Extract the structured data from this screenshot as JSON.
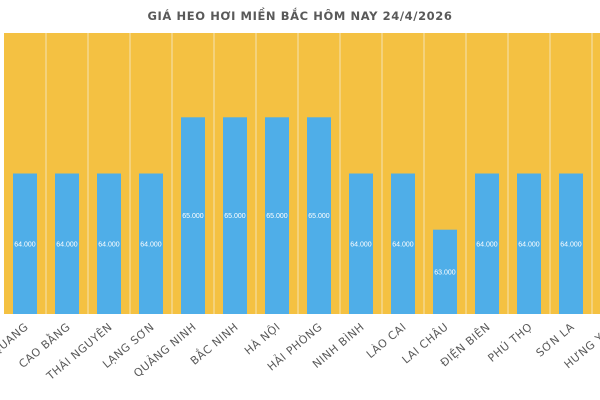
{
  "chart_data": {
    "type": "bar",
    "title": "GIÁ HEO HƠI MIỀN BẮC HÔM NAY 24/4/2026",
    "categories": [
      "TUYÊN QUANG",
      "CAO BẰNG",
      "THÁI NGUYÊN",
      "LẠNG SƠN",
      "QUẢNG NINH",
      "BẮC NINH",
      "HÀ NỘI",
      "HẢI PHÒNG",
      "NINH BÌNH",
      "LÀO CAI",
      "LAI CHÂU",
      "ĐIỆN BIÊN",
      "PHÚ THỌ",
      "SƠN LA",
      "HƯNG YÊN"
    ],
    "values": [
      64000,
      64000,
      64000,
      64000,
      65000,
      65000,
      65000,
      65000,
      64000,
      64000,
      63000,
      64000,
      64000,
      64000,
      null
    ],
    "data_labels": [
      "64.000",
      "64.000",
      "64.000",
      "64.000",
      "65.000",
      "65.000",
      "65.000",
      "65.000",
      "64.000",
      "64.000",
      "63.000",
      "64.000",
      "64.000",
      "64.000",
      ""
    ],
    "xlabel": "",
    "ylabel": "",
    "ylim": [
      61500,
      66500
    ],
    "grid": "vertical category separators",
    "legend": "none",
    "colors": {
      "bar": "#4FAEE8",
      "plot_background": "#F4C142",
      "separator": "#F3E3B4",
      "text": "#595959"
    }
  }
}
